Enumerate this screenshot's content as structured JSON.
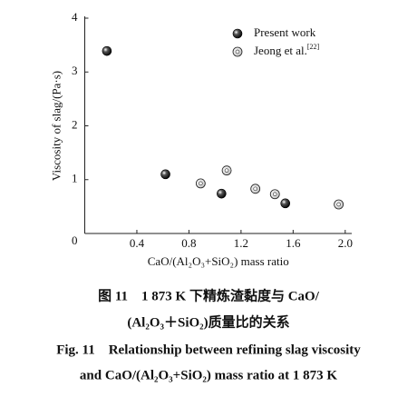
{
  "chart_data": {
    "type": "scatter",
    "x_label": "CaO/(Al₂O₃+SiO₂) mass ratio",
    "y_label": "Viscosity of slag/(Pa·s)",
    "xlim": [
      0,
      2.05
    ],
    "ylim": [
      0,
      4
    ],
    "xticks": [
      0.4,
      0.8,
      1.2,
      1.6,
      {
        "value": 2,
        "label": "2.0"
      }
    ],
    "yticks": [
      0,
      1,
      2,
      3,
      4
    ],
    "legend_position": "top-right",
    "series": [
      {
        "name": "Present work",
        "color": "#000000",
        "marker": "solid",
        "x": [
          0.17,
          0.62,
          1.05,
          1.54
        ],
        "values": [
          3.39,
          1.1,
          0.74,
          0.56
        ]
      },
      {
        "name": "Jeong et al.",
        "reference": "[22]",
        "color": "#ffffff",
        "marker": "open",
        "x": [
          0.89,
          1.09,
          1.31,
          1.46,
          1.95
        ],
        "values": [
          0.93,
          1.17,
          0.83,
          0.73,
          0.54
        ]
      }
    ]
  },
  "caption": {
    "zh": [
      "图 11　1 873 K 下精炼渣黏度与 CaO/",
      "(Al₂O₃＋SiO₂)质量比的关系"
    ],
    "en": [
      "Fig. 11　Relationship between refining slag viscosity",
      "and CaO/(Al₂O₃+SiO₂) mass ratio at 1 873 K"
    ]
  }
}
